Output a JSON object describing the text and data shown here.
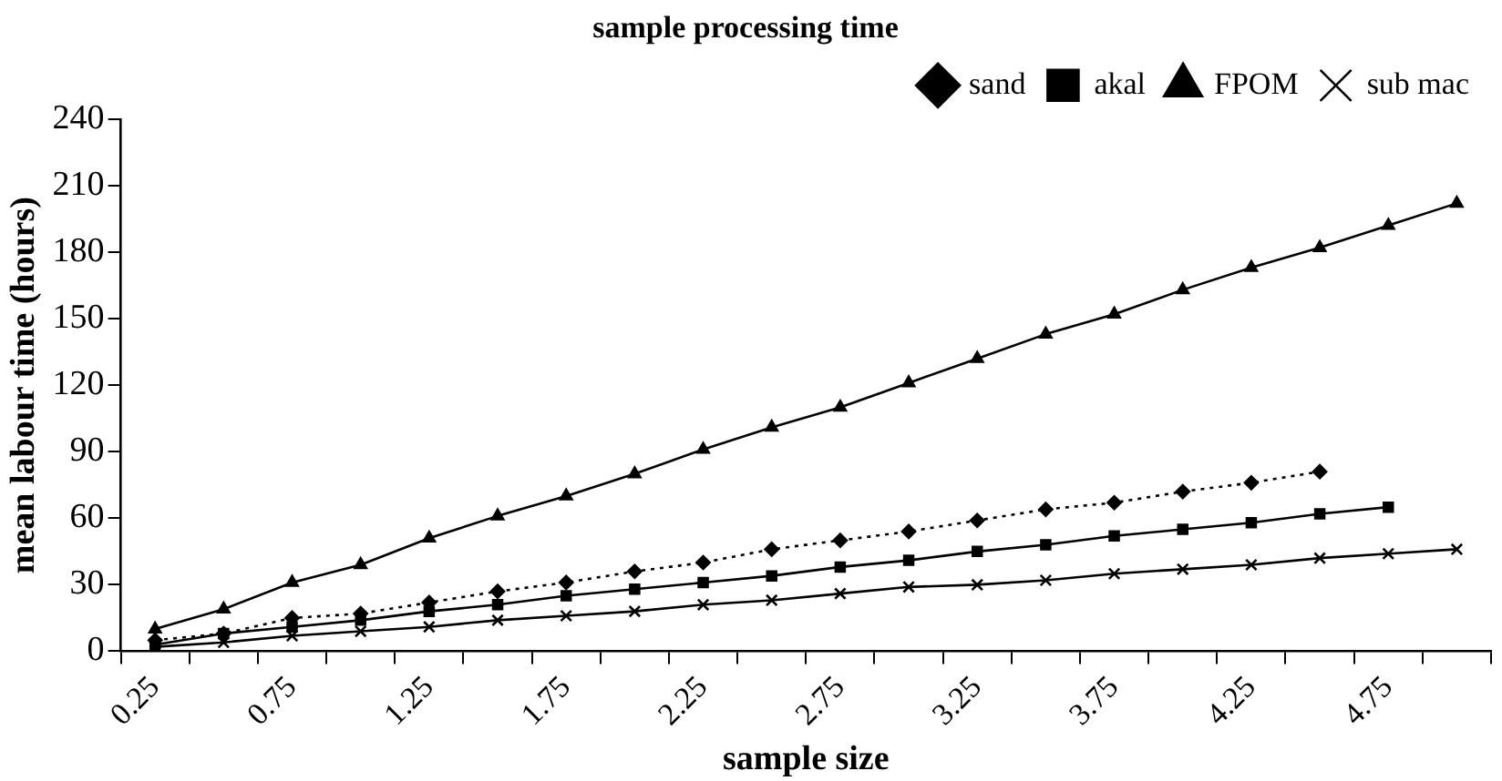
{
  "chart_data": {
    "type": "line",
    "title": "sample processing time",
    "xlabel": "sample size",
    "ylabel": "mean labour time (hours)",
    "categories": [
      "0.25",
      null,
      "0.75",
      null,
      "1.25",
      null,
      "1.75",
      null,
      "2.25",
      null,
      "2.75",
      null,
      "3.25",
      null,
      "3.75",
      null,
      "4.25",
      null,
      "4.75",
      null
    ],
    "series": [
      {
        "name": "sand",
        "color": "#000000",
        "marker": "diamond",
        "line_style": "dotted",
        "values": [
          5,
          8,
          15,
          17,
          22,
          27,
          31,
          36,
          40,
          46,
          50,
          54,
          59,
          64,
          67,
          72,
          76,
          81,
          null,
          null
        ]
      },
      {
        "name": "akal",
        "color": "#000000",
        "marker": "square",
        "line_style": "solid",
        "values": [
          3,
          8,
          11,
          14,
          18,
          21,
          25,
          28,
          31,
          34,
          38,
          41,
          45,
          48,
          52,
          55,
          58,
          62,
          65,
          null
        ]
      },
      {
        "name": "FPOM",
        "color": "#000000",
        "marker": "triangle",
        "line_style": "solid",
        "values": [
          10,
          19,
          31,
          39,
          51,
          61,
          70,
          80,
          91,
          101,
          110,
          121,
          132,
          143,
          152,
          163,
          173,
          182,
          192,
          202
        ]
      },
      {
        "name": "sub mac",
        "color": "#000000",
        "marker": "cross",
        "line_style": "solid",
        "values": [
          2,
          4,
          7,
          9,
          11,
          14,
          16,
          18,
          21,
          23,
          26,
          29,
          30,
          32,
          35,
          37,
          39,
          42,
          44,
          46
        ]
      }
    ],
    "ylim": [
      0,
      240
    ],
    "yticks": [
      0,
      30,
      60,
      90,
      120,
      150,
      180,
      210,
      240
    ],
    "grid": false,
    "legend": "top right"
  }
}
